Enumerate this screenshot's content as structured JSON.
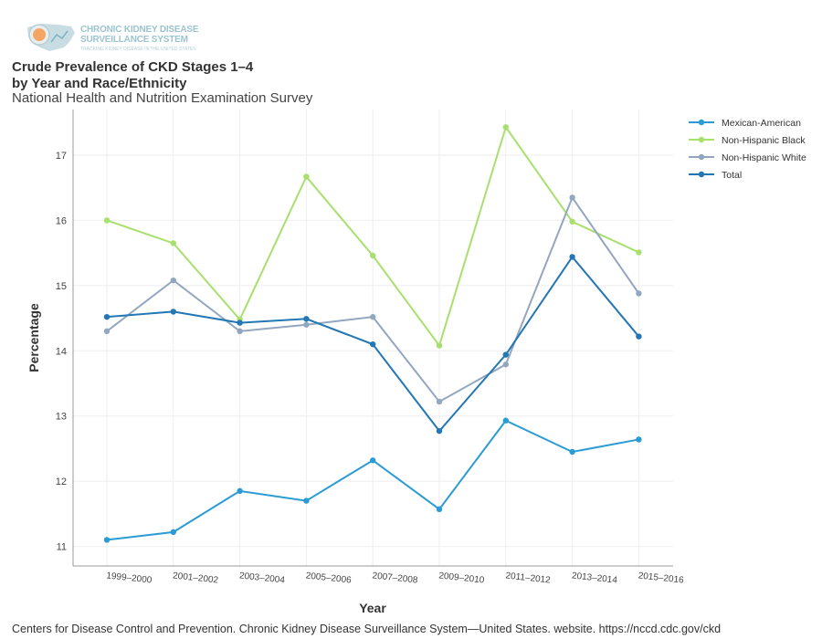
{
  "logo": {
    "line1": "CHRONIC KIDNEY DISEASE",
    "line2": "SURVEILLANCE SYSTEM",
    "tagline": "TRACKING KIDNEY DISEASE IN THE UNITED STATES"
  },
  "title_line1": "Crude Prevalence of CKD Stages 1–4",
  "title_line2": "by Year and Race/Ethnicity",
  "subtitle": "National Health and Nutrition Examination Survey",
  "source": "Centers for Disease Control and Prevention. Chronic Kidney Disease Surveillance System—United States. website. https://nccd.cdc.gov/ckd",
  "chart_data": {
    "type": "line",
    "categories": [
      "1999–2000",
      "2001–2002",
      "2003–2004",
      "2005–2006",
      "2007–2008",
      "2009–2010",
      "2011–2012",
      "2013–2014",
      "2015–2016"
    ],
    "xlabel": "Year",
    "ylabel": "Percentage",
    "ylim": [
      10.7,
      17.7
    ],
    "yticks": [
      11,
      12,
      13,
      14,
      15,
      16,
      17
    ],
    "grid": true,
    "legend_position": "right",
    "series": [
      {
        "name": "Mexican-American",
        "color": "#2b9bd5",
        "values": [
          11.1,
          11.22,
          11.85,
          11.7,
          12.32,
          11.57,
          12.93,
          12.45,
          12.64
        ]
      },
      {
        "name": "Non-Hispanic Black",
        "color": "#a8e06e",
        "values": [
          16.0,
          15.65,
          14.48,
          16.67,
          15.46,
          14.08,
          17.43,
          15.98,
          15.51
        ]
      },
      {
        "name": "Non-Hispanic White",
        "color": "#93a6bf",
        "values": [
          14.3,
          15.08,
          14.3,
          14.4,
          14.52,
          13.22,
          13.79,
          16.35,
          14.88
        ]
      },
      {
        "name": "Total",
        "color": "#2277b4",
        "values": [
          14.52,
          14.6,
          14.43,
          14.49,
          14.1,
          12.77,
          13.94,
          15.44,
          14.22
        ]
      }
    ]
  }
}
